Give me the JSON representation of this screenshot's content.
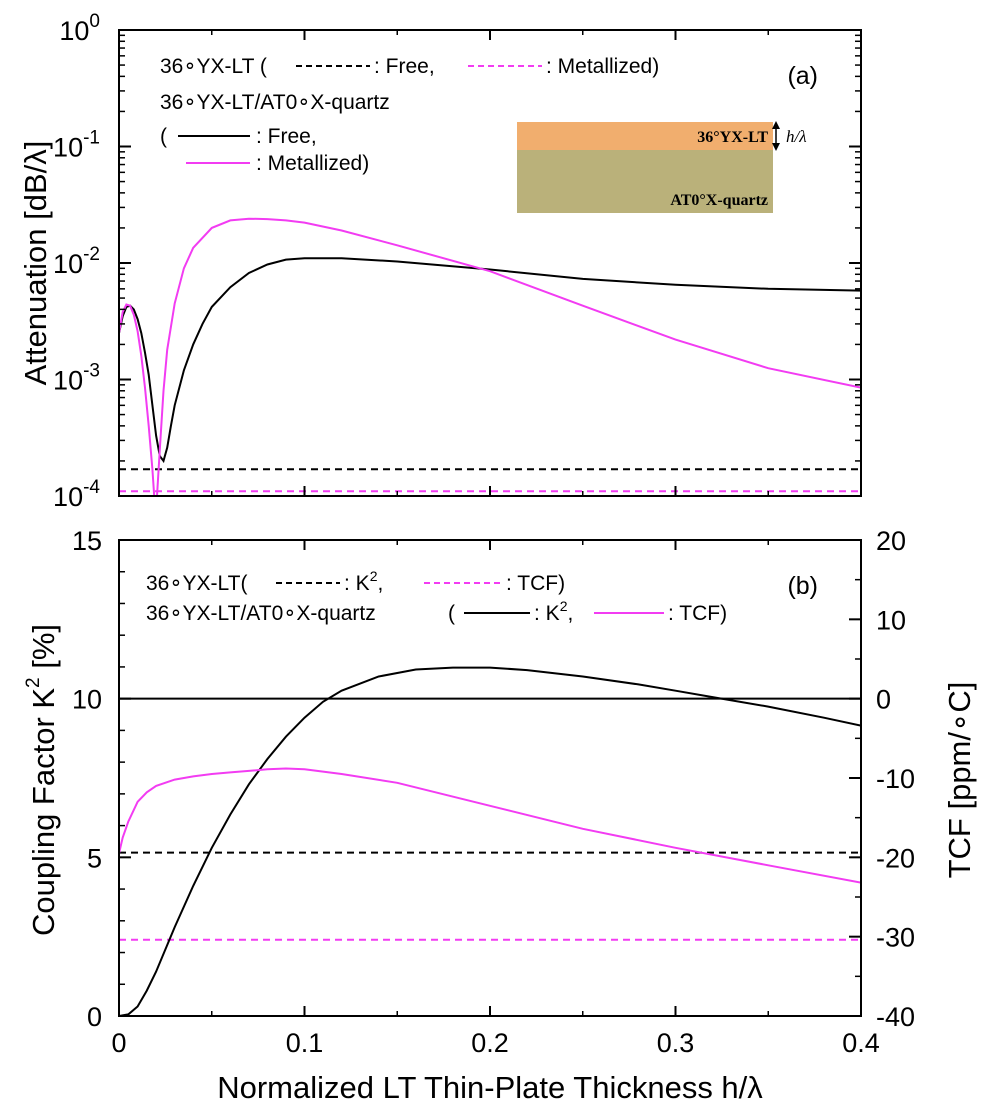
{
  "chart_data": [
    {
      "panel": "a",
      "type": "line",
      "panel_label": "(a)",
      "ylabel": "Attenuation  [dB/λ]",
      "xlim": [
        0,
        0.4
      ],
      "ylim": [
        0.0001,
        1
      ],
      "yscale": "log",
      "yticks": [
        {
          "value": 1,
          "base": "10",
          "exp": "0"
        },
        {
          "value": 0.1,
          "base": "10",
          "exp": "-1"
        },
        {
          "value": 0.01,
          "base": "10",
          "exp": "-2"
        },
        {
          "value": 0.001,
          "base": "10",
          "exp": "-3"
        },
        {
          "value": 0.0001,
          "base": "10",
          "exp": "-4"
        }
      ],
      "legend": {
        "line1_prefix": "36∘YX-LT (",
        "line1_free": ": Free,",
        "line1_metal": ": Metallized)",
        "line2": "36∘YX-LT/AT0∘X-quartz",
        "line3_paren": "(",
        "line3_free": ": Free,",
        "line4_metal": ": Metallized)"
      },
      "inset": {
        "top_layer": "36°YX-LT",
        "bottom_layer": "AT0°X-quartz",
        "thickness_label": "h/λ",
        "top_color": "#F1AE6E",
        "bottom_color": "#BAB17A"
      },
      "series": [
        {
          "style": "black-dashed",
          "color": "#000000",
          "x": [
            0,
            0.4
          ],
          "y": [
            0.00017,
            0.00017
          ]
        },
        {
          "style": "magenta-dashed",
          "color": "#F23CF2",
          "x": [
            0,
            0.4
          ],
          "y": [
            0.00011,
            0.00011
          ]
        },
        {
          "style": "black-solid",
          "color": "#000000",
          "x": [
            0,
            0.002,
            0.004,
            0.006,
            0.008,
            0.01,
            0.012,
            0.014,
            0.016,
            0.018,
            0.02,
            0.022,
            0.024,
            0.026,
            0.028,
            0.03,
            0.035,
            0.04,
            0.045,
            0.05,
            0.06,
            0.07,
            0.08,
            0.09,
            0.1,
            0.12,
            0.15,
            0.2,
            0.25,
            0.3,
            0.35,
            0.4
          ],
          "y": [
            0.0025,
            0.0035,
            0.0042,
            0.0043,
            0.004,
            0.0033,
            0.0025,
            0.0017,
            0.0011,
            0.0006,
            0.00033,
            0.00022,
            0.0002,
            0.00026,
            0.0004,
            0.0006,
            0.0012,
            0.002,
            0.003,
            0.0042,
            0.0062,
            0.0082,
            0.0097,
            0.0107,
            0.011,
            0.011,
            0.0103,
            0.0088,
            0.0073,
            0.0065,
            0.006,
            0.0058
          ]
        },
        {
          "style": "magenta-solid",
          "color": "#F23CF2",
          "x": [
            0,
            0.002,
            0.004,
            0.006,
            0.008,
            0.01,
            0.012,
            0.014,
            0.016,
            0.018,
            0.019,
            0.0205,
            0.022,
            0.024,
            0.026,
            0.03,
            0.035,
            0.04,
            0.05,
            0.06,
            0.07,
            0.08,
            0.09,
            0.1,
            0.12,
            0.15,
            0.2,
            0.25,
            0.3,
            0.35,
            0.4
          ],
          "y": [
            0.0025,
            0.0038,
            0.0044,
            0.0043,
            0.0036,
            0.0026,
            0.0016,
            0.00085,
            0.0004,
            0.00017,
            0.0001,
            0.0001,
            0.00025,
            0.0008,
            0.0018,
            0.0045,
            0.009,
            0.0135,
            0.02,
            0.0232,
            0.024,
            0.0238,
            0.0232,
            0.0222,
            0.019,
            0.0142,
            0.0085,
            0.0043,
            0.0022,
            0.00125,
            0.00085
          ]
        }
      ]
    },
    {
      "panel": "b",
      "type": "line",
      "panel_label": "(b)",
      "xlabel": "Normalized  LT  Thin-Plate  Thickness  h/λ",
      "ylabel": "Coupling  Factor  K",
      "ylabel_sup": "2",
      "ylabel_tail": "  [%]",
      "y2label": "TCF  [ppm/∘C]",
      "xlim": [
        0,
        0.4
      ],
      "ylim": [
        0,
        15
      ],
      "y2lim": [
        -40,
        20
      ],
      "xticks": [
        "0",
        "0.1",
        "0.2",
        "0.3",
        "0.4"
      ],
      "yticks": [
        "0",
        "5",
        "10",
        "15"
      ],
      "y2ticks": [
        "-40",
        "-30",
        "-20",
        "-10",
        "0",
        "10",
        "20"
      ],
      "legend": {
        "line1_prefix": "36∘YX-LT(",
        "line1_k": ": K",
        "line1_k_sup": "2",
        "line1_comma": ",",
        "line1_tcf": ": TCF)",
        "line2_prefix": "36∘YX-LT/AT0∘X-quartz",
        "line2_paren": "(",
        "line2_k": ": K",
        "line2_k_sup": "2",
        "line2_comma": ",",
        "line2_tcf": ": TCF)"
      },
      "series": [
        {
          "style": "black-dashed",
          "axis": "K2",
          "color": "#000000",
          "x": [
            0,
            0.4
          ],
          "y": [
            5.15,
            5.15
          ]
        },
        {
          "style": "magenta-dashed",
          "axis": "TCF",
          "color": "#F23CF2",
          "x": [
            0,
            0.4
          ],
          "y": [
            -30.4,
            -30.4
          ]
        },
        {
          "style": "black-solid",
          "axis": "K2",
          "color": "#000000",
          "x": [
            0,
            0.005,
            0.01,
            0.015,
            0.02,
            0.03,
            0.04,
            0.05,
            0.06,
            0.07,
            0.08,
            0.09,
            0.1,
            0.11,
            0.12,
            0.14,
            0.16,
            0.18,
            0.2,
            0.22,
            0.25,
            0.28,
            0.3,
            0.32,
            0.35,
            0.38,
            0.4
          ],
          "y": [
            0,
            0.05,
            0.3,
            0.8,
            1.4,
            2.8,
            4.1,
            5.3,
            6.35,
            7.3,
            8.1,
            8.8,
            9.4,
            9.9,
            10.25,
            10.7,
            10.92,
            10.98,
            10.98,
            10.9,
            10.7,
            10.45,
            10.25,
            10.05,
            9.75,
            9.4,
            9.15
          ]
        },
        {
          "style": "magenta-solid",
          "axis": "TCF",
          "color": "#F23CF2",
          "x": [
            0,
            0.002,
            0.005,
            0.01,
            0.015,
            0.02,
            0.03,
            0.04,
            0.05,
            0.06,
            0.07,
            0.08,
            0.09,
            0.1,
            0.12,
            0.15,
            0.2,
            0.25,
            0.3,
            0.35,
            0.4
          ],
          "y": [
            -19.5,
            -17.5,
            -15.5,
            -13,
            -11.8,
            -11,
            -10.2,
            -9.8,
            -9.5,
            -9.3,
            -9.1,
            -8.9,
            -8.8,
            -8.9,
            -9.5,
            -10.6,
            -13.5,
            -16.4,
            -18.8,
            -21,
            -23.2
          ]
        }
      ]
    }
  ]
}
